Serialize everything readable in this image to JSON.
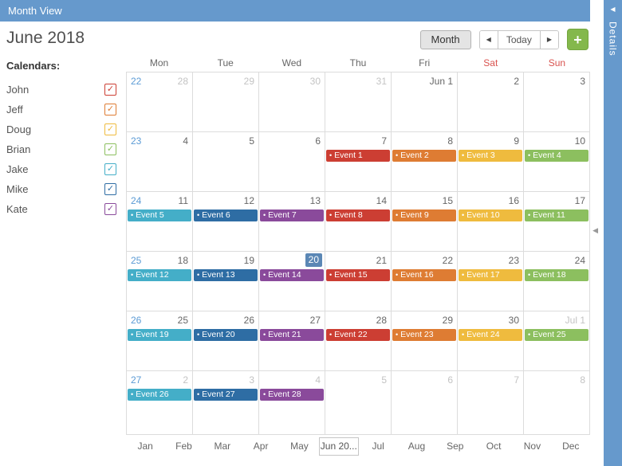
{
  "app": {
    "title": "Month View",
    "details_label": "Details",
    "collapse_icon": "◀",
    "splitter_icon": "◀"
  },
  "theme": {
    "header_color": "#6699cc",
    "grid_border_color": "#dcdcdc",
    "weekend_color": "#d9534f",
    "week_number_color": "#5b9bd5",
    "today_badge_color": "#5b87b5",
    "add_button_color": "#84b84c"
  },
  "toolbar": {
    "month_title": "June 2018",
    "view_button": "Month",
    "prev_icon": "◀",
    "today_button": "Today",
    "next_icon": "▶",
    "add_button": "+"
  },
  "sidebar": {
    "heading": "Calendars:",
    "check_glyph": "✓",
    "calendars": [
      {
        "name": "John",
        "color": "#cc3e33"
      },
      {
        "name": "Jeff",
        "color": "#de7c33"
      },
      {
        "name": "Doug",
        "color": "#efbb3e"
      },
      {
        "name": "Brian",
        "color": "#8cbf5f"
      },
      {
        "name": "Jake",
        "color": "#44aec8"
      },
      {
        "name": "Mike",
        "color": "#2e6da4"
      },
      {
        "name": "Kate",
        "color": "#8a4a9b"
      }
    ]
  },
  "calendar": {
    "day_headers": [
      "Mon",
      "Tue",
      "Wed",
      "Thu",
      "Fri",
      "Sat",
      "Sun"
    ],
    "weekend_days": [
      "Sat",
      "Sun"
    ],
    "event_bullet": "•",
    "weeks": [
      {
        "number": "22",
        "days": [
          {
            "label": "28",
            "muted": true,
            "events": []
          },
          {
            "label": "29",
            "muted": true,
            "events": []
          },
          {
            "label": "30",
            "muted": true,
            "events": []
          },
          {
            "label": "31",
            "muted": true,
            "events": []
          },
          {
            "label": "Jun 1",
            "muted": false,
            "events": []
          },
          {
            "label": "2",
            "muted": false,
            "events": []
          },
          {
            "label": "3",
            "muted": false,
            "events": []
          }
        ]
      },
      {
        "number": "23",
        "days": [
          {
            "label": "4",
            "muted": false,
            "events": []
          },
          {
            "label": "5",
            "muted": false,
            "events": []
          },
          {
            "label": "6",
            "muted": false,
            "events": []
          },
          {
            "label": "7",
            "muted": false,
            "events": [
              {
                "text": "Event 1",
                "color": "#cc3e33"
              }
            ]
          },
          {
            "label": "8",
            "muted": false,
            "events": [
              {
                "text": "Event 2",
                "color": "#de7c33"
              }
            ]
          },
          {
            "label": "9",
            "muted": false,
            "events": [
              {
                "text": "Event 3",
                "color": "#efbb3e"
              }
            ]
          },
          {
            "label": "10",
            "muted": false,
            "events": [
              {
                "text": "Event 4",
                "color": "#8cbf5f"
              }
            ]
          }
        ]
      },
      {
        "number": "24",
        "days": [
          {
            "label": "11",
            "muted": false,
            "events": [
              {
                "text": "Event 5",
                "color": "#44aec8"
              }
            ]
          },
          {
            "label": "12",
            "muted": false,
            "events": [
              {
                "text": "Event 6",
                "color": "#2e6da4"
              }
            ]
          },
          {
            "label": "13",
            "muted": false,
            "events": [
              {
                "text": "Event 7",
                "color": "#8a4a9b"
              }
            ]
          },
          {
            "label": "14",
            "muted": false,
            "events": [
              {
                "text": "Event 8",
                "color": "#cc3e33"
              }
            ]
          },
          {
            "label": "15",
            "muted": false,
            "events": [
              {
                "text": "Event 9",
                "color": "#de7c33"
              }
            ]
          },
          {
            "label": "16",
            "muted": false,
            "events": [
              {
                "text": "Event 10",
                "color": "#efbb3e"
              }
            ]
          },
          {
            "label": "17",
            "muted": false,
            "events": [
              {
                "text": "Event 11",
                "color": "#8cbf5f"
              }
            ]
          }
        ]
      },
      {
        "number": "25",
        "days": [
          {
            "label": "18",
            "muted": false,
            "events": [
              {
                "text": "Event 12",
                "color": "#44aec8"
              }
            ]
          },
          {
            "label": "19",
            "muted": false,
            "events": [
              {
                "text": "Event 13",
                "color": "#2e6da4"
              }
            ]
          },
          {
            "label": "20",
            "muted": false,
            "today": true,
            "events": [
              {
                "text": "Event 14",
                "color": "#8a4a9b"
              }
            ]
          },
          {
            "label": "21",
            "muted": false,
            "events": [
              {
                "text": "Event 15",
                "color": "#cc3e33"
              }
            ]
          },
          {
            "label": "22",
            "muted": false,
            "events": [
              {
                "text": "Event 16",
                "color": "#de7c33"
              }
            ]
          },
          {
            "label": "23",
            "muted": false,
            "events": [
              {
                "text": "Event 17",
                "color": "#efbb3e"
              }
            ]
          },
          {
            "label": "24",
            "muted": false,
            "events": [
              {
                "text": "Event 18",
                "color": "#8cbf5f"
              }
            ]
          }
        ]
      },
      {
        "number": "26",
        "days": [
          {
            "label": "25",
            "muted": false,
            "events": [
              {
                "text": "Event 19",
                "color": "#44aec8"
              }
            ]
          },
          {
            "label": "26",
            "muted": false,
            "events": [
              {
                "text": "Event 20",
                "color": "#2e6da4"
              }
            ]
          },
          {
            "label": "27",
            "muted": false,
            "events": [
              {
                "text": "Event 21",
                "color": "#8a4a9b"
              }
            ]
          },
          {
            "label": "28",
            "muted": false,
            "events": [
              {
                "text": "Event 22",
                "color": "#cc3e33"
              }
            ]
          },
          {
            "label": "29",
            "muted": false,
            "events": [
              {
                "text": "Event 23",
                "color": "#de7c33"
              }
            ]
          },
          {
            "label": "30",
            "muted": false,
            "events": [
              {
                "text": "Event 24",
                "color": "#efbb3e"
              }
            ]
          },
          {
            "label": "Jul 1",
            "muted": true,
            "events": [
              {
                "text": "Event 25",
                "color": "#8cbf5f"
              }
            ]
          }
        ]
      },
      {
        "number": "27",
        "days": [
          {
            "label": "2",
            "muted": true,
            "events": [
              {
                "text": "Event 26",
                "color": "#44aec8"
              }
            ]
          },
          {
            "label": "3",
            "muted": true,
            "events": [
              {
                "text": "Event 27",
                "color": "#2e6da4"
              }
            ]
          },
          {
            "label": "4",
            "muted": true,
            "events": [
              {
                "text": "Event 28",
                "color": "#8a4a9b"
              }
            ]
          },
          {
            "label": "5",
            "muted": true,
            "events": []
          },
          {
            "label": "6",
            "muted": true,
            "events": []
          },
          {
            "label": "7",
            "muted": true,
            "events": []
          },
          {
            "label": "8",
            "muted": true,
            "events": []
          }
        ]
      }
    ]
  },
  "month_tabs": {
    "items": [
      "Jan",
      "Feb",
      "Mar",
      "Apr",
      "May",
      "Jun 20...",
      "Jul",
      "Aug",
      "Sep",
      "Oct",
      "Nov",
      "Dec"
    ],
    "active": "Jun 20..."
  }
}
